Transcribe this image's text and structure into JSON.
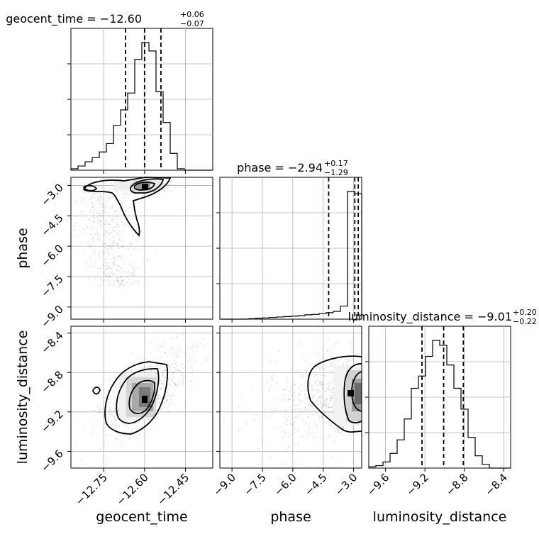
{
  "chart_data": {
    "type": "corner",
    "parameters": [
      {
        "name": "geocent_time",
        "title_prefix": "geocent_time = ",
        "median_text": "−12.60",
        "upper_text": "+0.06",
        "lower_text": "−0.07",
        "median": -12.6,
        "q_low": -12.67,
        "q_high": -12.54,
        "range": [
          -12.87,
          -12.35
        ],
        "axis_label": "geocent_time",
        "ticks": [
          -12.75,
          -12.6,
          -12.45
        ],
        "tick_labels": [
          "−12.75",
          "−12.60",
          "−12.45"
        ],
        "hist": {
          "edges_start": -12.87,
          "bin_width": 0.026,
          "counts": [
            1,
            3,
            6,
            9,
            13,
            19,
            32,
            43,
            55,
            79,
            91,
            85,
            56,
            34,
            12,
            1,
            0,
            0,
            0,
            0
          ]
        }
      },
      {
        "name": "phase",
        "title_prefix": "phase = ",
        "median_text": "−2.94",
        "upper_text": "+0.17",
        "lower_text": "−1.29",
        "median": -2.94,
        "q_low": -4.23,
        "q_high": -2.77,
        "range": [
          -9.6,
          -2.6
        ],
        "axis_label": "phase",
        "ticks": [
          -9.0,
          -7.5,
          -6.0,
          -4.5,
          -3.0
        ],
        "tick_labels": [
          "−9.0",
          "−7.5",
          "−6.0",
          "−4.5",
          "−3.0"
        ],
        "hist": {
          "edges_start": -9.6,
          "bin_width": 0.35,
          "counts": [
            0,
            0,
            0,
            0,
            1,
            2,
            3,
            4,
            5,
            6,
            7,
            8,
            10,
            11,
            13,
            15,
            18,
            30,
            295,
            290
          ]
        }
      },
      {
        "name": "luminosity_distance",
        "title_prefix": "luminosity_distance = ",
        "median_text": "−9.01",
        "upper_text": "+0.20",
        "lower_text": "−0.22",
        "median": -9.01,
        "q_low": -9.23,
        "q_high": -8.81,
        "range": [
          -9.77,
          -8.33
        ],
        "axis_label": "luminosity_distance",
        "ticks": [
          -9.6,
          -9.2,
          -8.8,
          -8.4
        ],
        "tick_labels": [
          "−9.6",
          "−9.2",
          "−8.8",
          "−8.4"
        ],
        "hist": {
          "edges_start": -9.77,
          "bin_width": 0.072,
          "counts": [
            1,
            2,
            5,
            12,
            23,
            40,
            65,
            75,
            91,
            104,
            100,
            84,
            65,
            48,
            25,
            10,
            3,
            0,
            0,
            0
          ]
        }
      }
    ],
    "grid": true,
    "median_line_style": "dashed",
    "contour_levels": 3,
    "scatter_color": "#000000"
  }
}
